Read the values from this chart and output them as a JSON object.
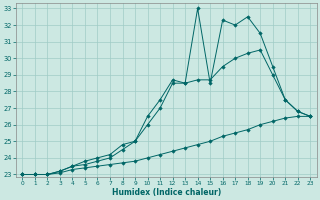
{
  "xlabel": "Humidex (Indice chaleur)",
  "background_color": "#cce8e2",
  "grid_color": "#a0ccc6",
  "line_color": "#006666",
  "xlim_min": -0.5,
  "xlim_max": 23.5,
  "ylim_min": 22.85,
  "ylim_max": 33.3,
  "xticks": [
    0,
    1,
    2,
    3,
    4,
    5,
    6,
    7,
    8,
    9,
    10,
    11,
    12,
    13,
    14,
    15,
    16,
    17,
    18,
    19,
    20,
    21,
    22,
    23
  ],
  "yticks": [
    23,
    24,
    25,
    26,
    27,
    28,
    29,
    30,
    31,
    32,
    33
  ],
  "series1_x": [
    0,
    1,
    2,
    3,
    4,
    5,
    6,
    7,
    8,
    9,
    10,
    11,
    12,
    13,
    14,
    15,
    16,
    17,
    18,
    19,
    20,
    21,
    22,
    23
  ],
  "series1_y": [
    23,
    23,
    23,
    23.1,
    23.3,
    23.4,
    23.5,
    23.6,
    23.7,
    23.8,
    24.0,
    24.2,
    24.4,
    24.6,
    24.8,
    25.0,
    25.3,
    25.5,
    25.7,
    26.0,
    26.2,
    26.4,
    26.5,
    26.5
  ],
  "series2_x": [
    0,
    1,
    2,
    3,
    4,
    5,
    6,
    7,
    8,
    9,
    10,
    11,
    12,
    13,
    14,
    15,
    16,
    17,
    18,
    19,
    20,
    21,
    22,
    23
  ],
  "series2_y": [
    23,
    23,
    23,
    23.2,
    23.5,
    23.6,
    23.8,
    24.0,
    24.5,
    25.0,
    26.0,
    27.0,
    28.5,
    28.5,
    28.7,
    28.7,
    29.5,
    30.0,
    30.3,
    30.5,
    29.0,
    27.5,
    26.8,
    26.5
  ],
  "series3_x": [
    0,
    1,
    2,
    3,
    4,
    5,
    6,
    7,
    8,
    9,
    10,
    11,
    12,
    13,
    14,
    15,
    16,
    17,
    18,
    19,
    20,
    21,
    22,
    23
  ],
  "series3_y": [
    23,
    23,
    23,
    23.2,
    23.5,
    23.8,
    24.0,
    24.2,
    24.8,
    25.0,
    26.5,
    27.5,
    28.7,
    28.5,
    33.0,
    28.5,
    32.3,
    32.0,
    32.5,
    31.5,
    29.5,
    27.5,
    26.8,
    26.5
  ]
}
